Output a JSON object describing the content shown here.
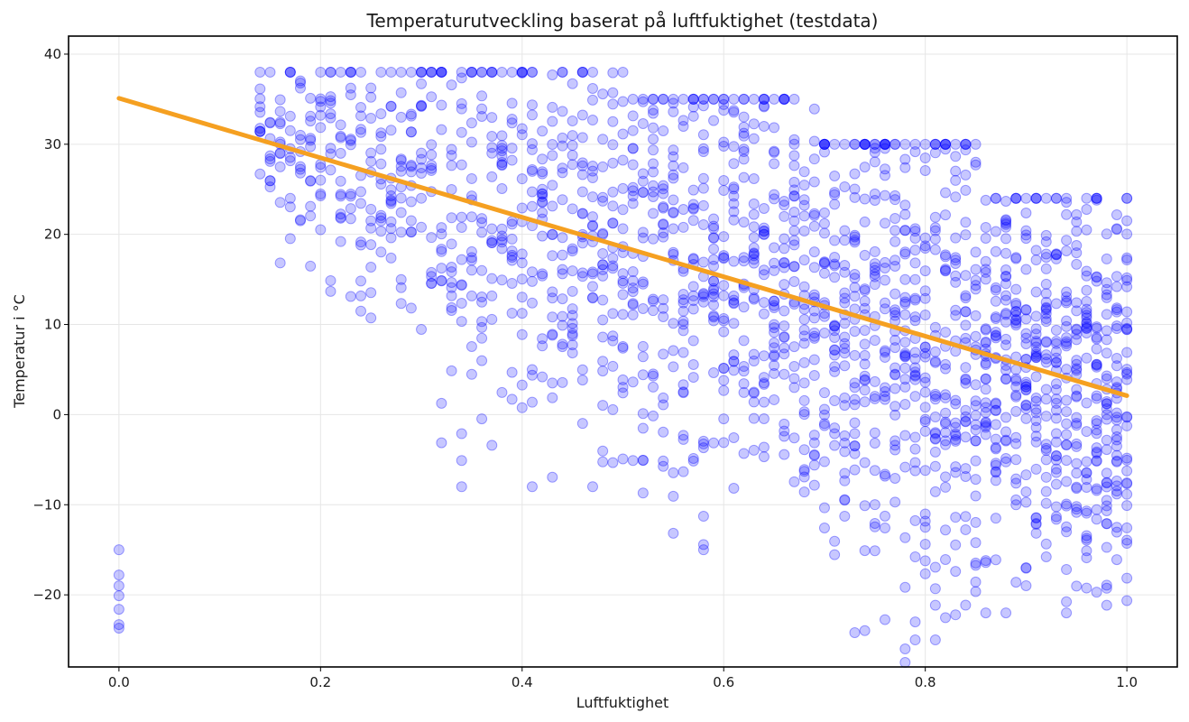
{
  "chart_data": {
    "type": "scatter",
    "title": "Temperaturutveckling baserat på luftfuktighet (testdata)",
    "xlabel": "Luftfuktighet",
    "ylabel": "Temperatur i °C",
    "xlim": [
      -0.05,
      1.05
    ],
    "ylim": [
      -28,
      42
    ],
    "x_ticks": [
      0.0,
      0.2,
      0.4,
      0.6,
      0.8,
      1.0
    ],
    "x_tick_labels": [
      "0.0",
      "0.2",
      "0.4",
      "0.6",
      "0.8",
      "1.0"
    ],
    "y_ticks": [
      -20,
      -10,
      0,
      10,
      20,
      30,
      40
    ],
    "y_tick_labels": [
      "−20",
      "−10",
      "0",
      "10",
      "20",
      "30",
      "40"
    ],
    "grid": true,
    "series": [
      {
        "kind": "scatter",
        "color": "#0000ff",
        "opacity": 0.22,
        "x_step": 0.01,
        "x_range": [
          0.14,
          1.0
        ],
        "cluster_bands": [
          {
            "x_range": [
              0.14,
              0.3
            ],
            "y_range": [
              10,
              38
            ]
          },
          {
            "x_range": [
              0.3,
              0.5
            ],
            "y_range": [
              -8,
              38
            ]
          },
          {
            "x_range": [
              0.5,
              0.7
            ],
            "y_range": [
              -15,
              35
            ]
          },
          {
            "x_range": [
              0.7,
              0.85
            ],
            "y_range": [
              -25,
              30
            ]
          },
          {
            "x_range": [
              0.85,
              1.0
            ],
            "y_range": [
              -22,
              24
            ]
          }
        ],
        "outliers": [
          {
            "x": 0.0,
            "y": -15
          },
          {
            "x": 0.0,
            "y": -17.8
          },
          {
            "x": 0.0,
            "y": -19
          },
          {
            "x": 0.0,
            "y": -20.1
          },
          {
            "x": 0.0,
            "y": -21.6
          },
          {
            "x": 0.0,
            "y": -23.3
          },
          {
            "x": 0.0,
            "y": -23.7
          },
          {
            "x": 0.78,
            "y": -27.5
          },
          {
            "x": 0.78,
            "y": -26
          },
          {
            "x": 0.79,
            "y": -25
          },
          {
            "x": 0.73,
            "y": -24.2
          }
        ]
      },
      {
        "kind": "line",
        "color": "#f5a021",
        "x": [
          0.0,
          1.0
        ],
        "y": [
          35.1,
          2.1
        ]
      }
    ]
  }
}
